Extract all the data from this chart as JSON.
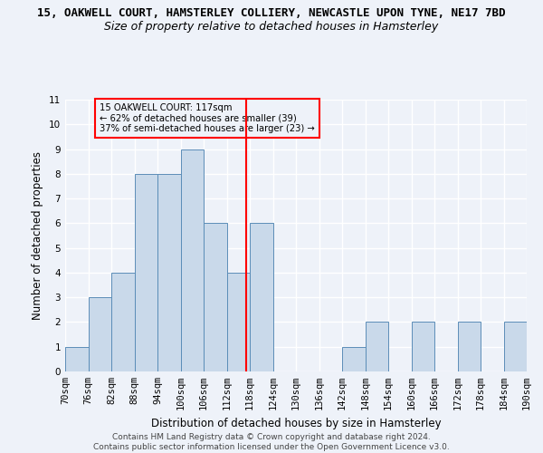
{
  "title_line1": "15, OAKWELL COURT, HAMSTERLEY COLLIERY, NEWCASTLE UPON TYNE, NE17 7BD",
  "title_line2": "Size of property relative to detached houses in Hamsterley",
  "xlabel": "Distribution of detached houses by size in Hamsterley",
  "ylabel": "Number of detached properties",
  "footnote": "Contains HM Land Registry data © Crown copyright and database right 2024.\nContains public sector information licensed under the Open Government Licence v3.0.",
  "bin_starts": [
    70,
    76,
    82,
    88,
    94,
    100,
    106,
    112,
    118,
    124,
    130,
    136,
    142,
    148,
    154,
    160,
    166,
    172,
    178,
    184
  ],
  "bin_labels": [
    "70sqm",
    "76sqm",
    "82sqm",
    "88sqm",
    "94sqm",
    "100sqm",
    "106sqm",
    "112sqm",
    "118sqm",
    "124sqm",
    "130sqm",
    "136sqm",
    "142sqm",
    "148sqm",
    "154sqm",
    "160sqm",
    "166sqm",
    "172sqm",
    "178sqm",
    "184sqm",
    "190sqm"
  ],
  "counts": [
    1,
    3,
    4,
    8,
    8,
    9,
    6,
    4,
    6,
    0,
    0,
    0,
    1,
    2,
    0,
    2,
    0,
    2,
    0,
    2
  ],
  "bar_color": "#c9d9ea",
  "bar_edge_color": "#5b8db8",
  "reference_line_x": 117,
  "reference_line_color": "red",
  "annotation_text": "15 OAKWELL COURT: 117sqm\n← 62% of detached houses are smaller (39)\n37% of semi-detached houses are larger (23) →",
  "annotation_box_color": "red",
  "ylim": [
    0,
    11
  ],
  "yticks": [
    0,
    1,
    2,
    3,
    4,
    5,
    6,
    7,
    8,
    9,
    10,
    11
  ],
  "xlim": [
    70,
    190
  ],
  "bg_color": "#eef2f9",
  "grid_color": "#ffffff",
  "title_fontsize": 9,
  "subtitle_fontsize": 9,
  "axis_label_fontsize": 8.5,
  "tick_fontsize": 7.5,
  "footnote_fontsize": 6.5
}
